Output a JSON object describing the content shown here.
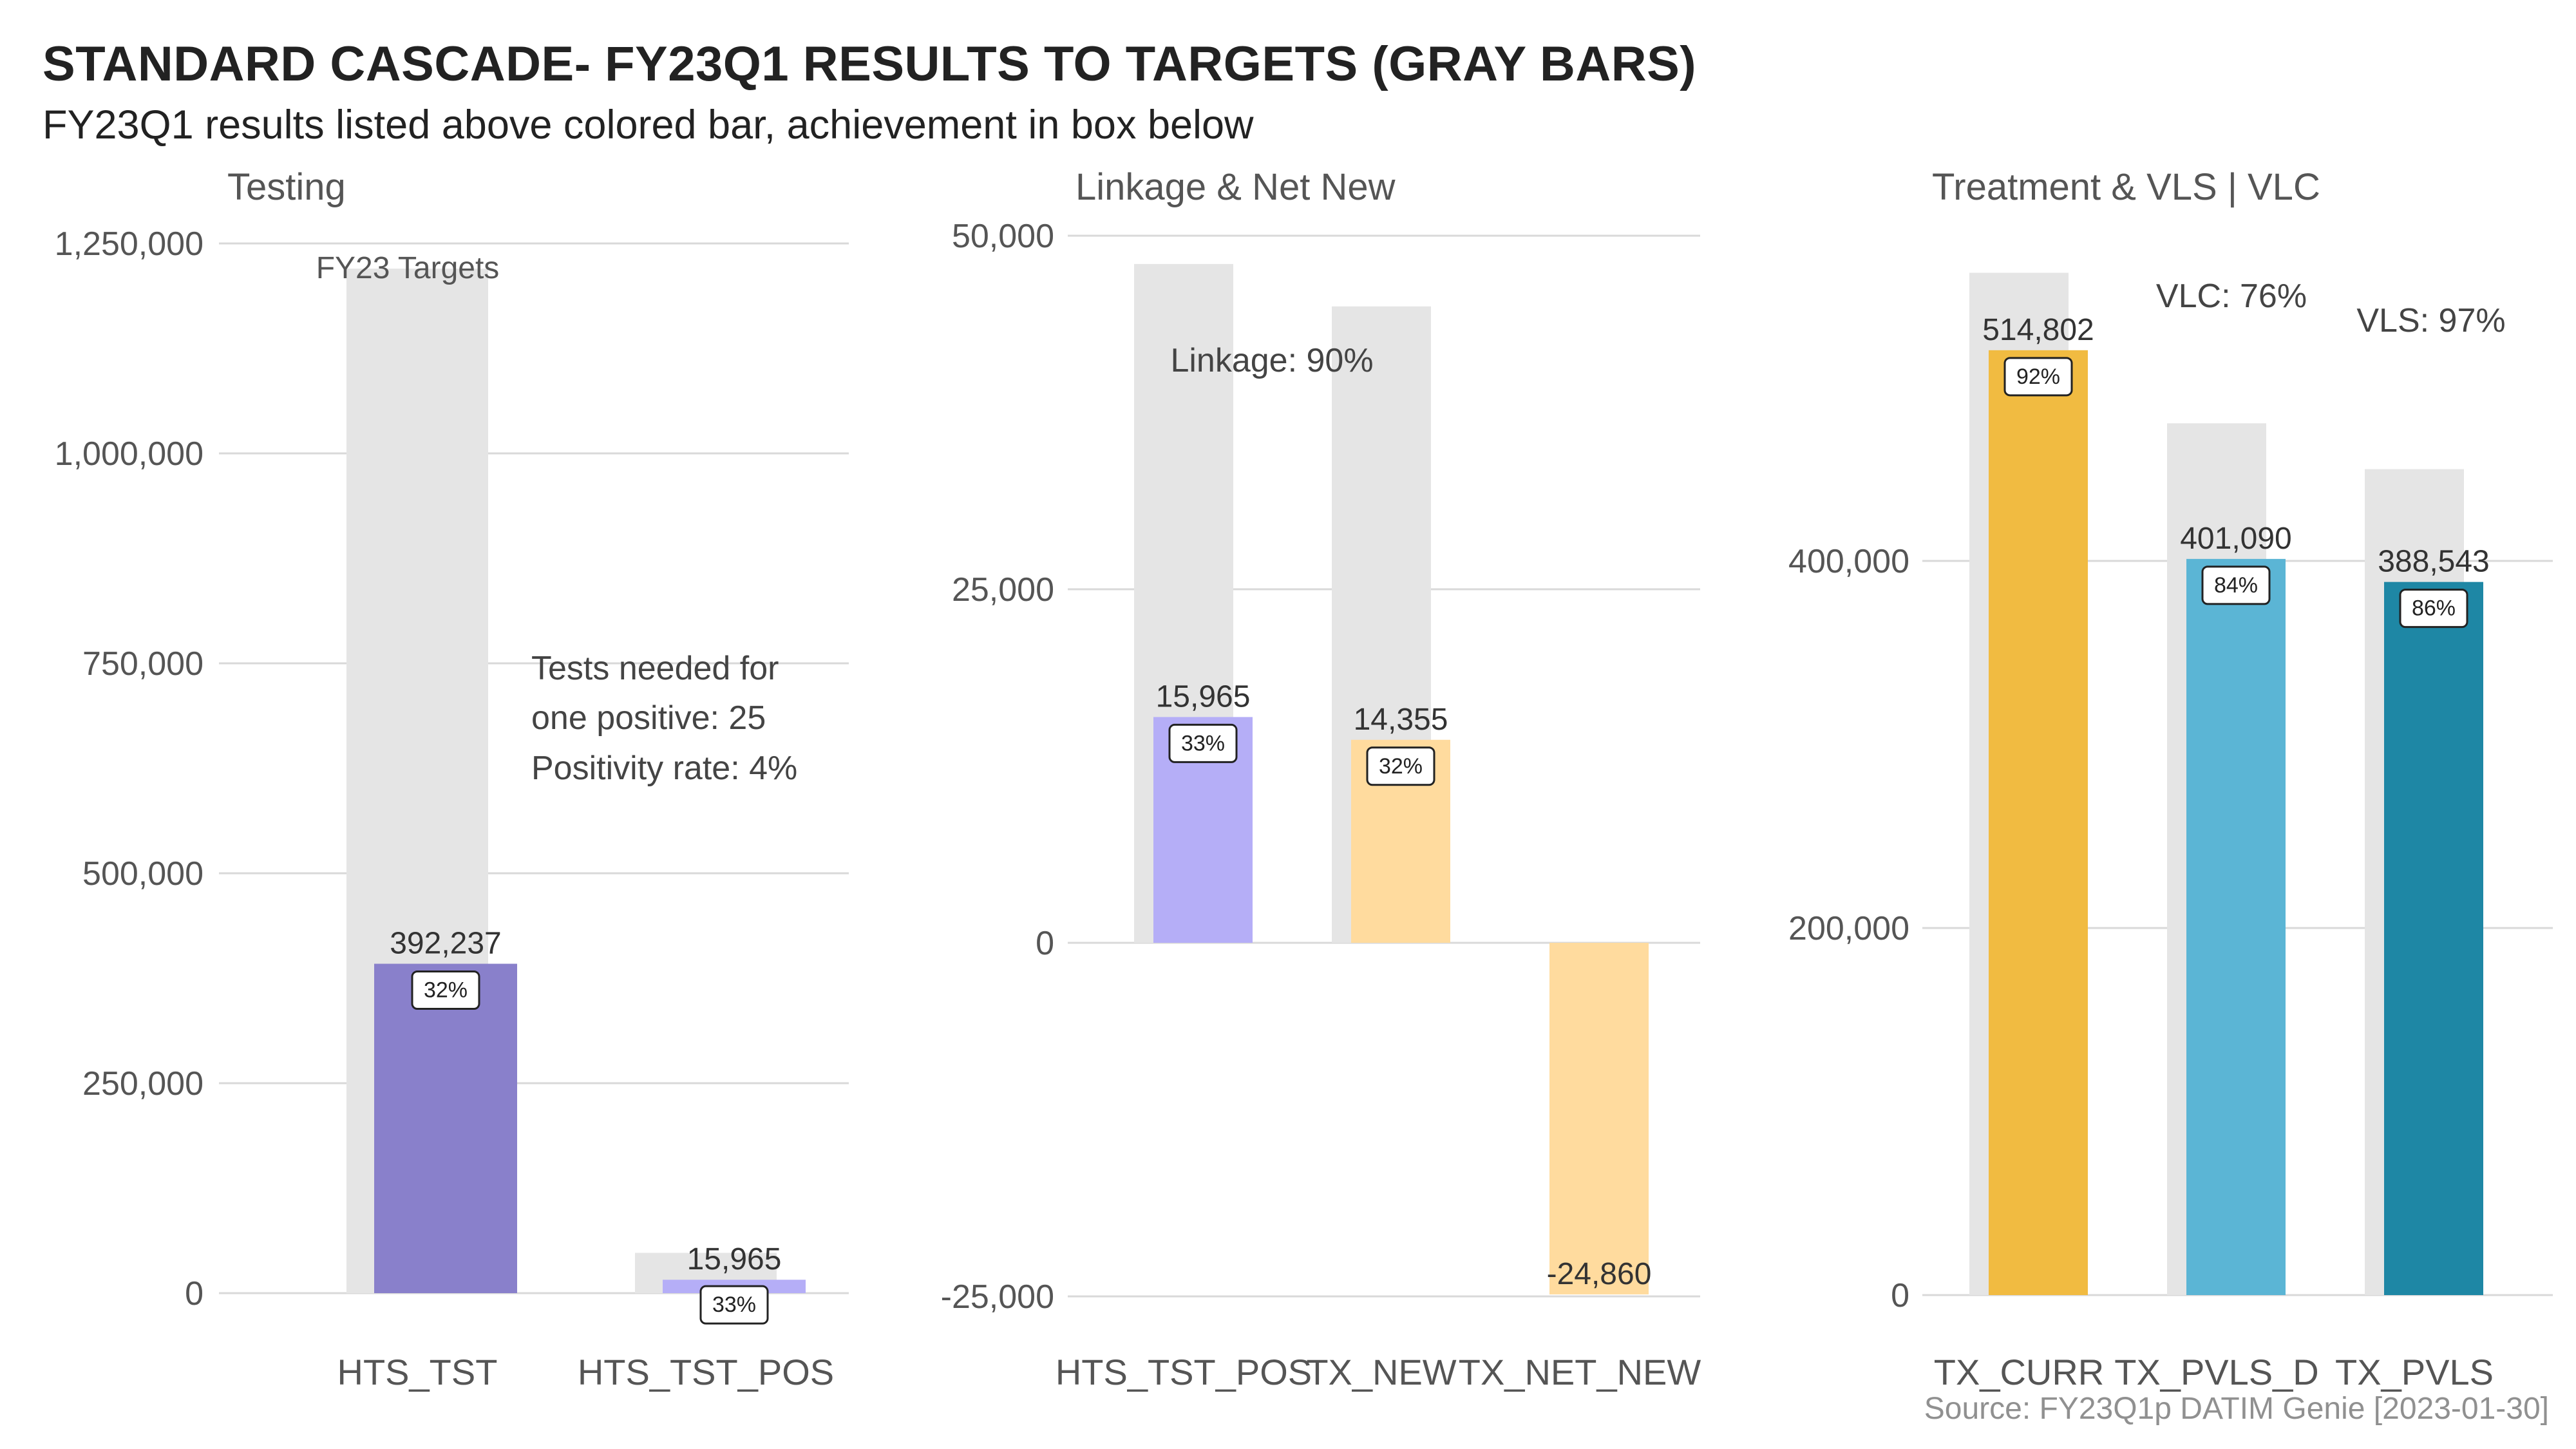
{
  "title": "STANDARD CASCADE- FY23Q1 RESULTS TO TARGETS (GRAY BARS)",
  "subtitle": "FY23Q1 results listed above colored bar, achievement in box below",
  "caption": "Source: FY23Q1p DATIM Genie [2023-01-30]",
  "colors": {
    "target": "#e5e5e5",
    "grid": "#d9d9d9",
    "hts_tst": "#8980cb",
    "purple_light": "#b5aef7",
    "peach": "#ffdb9e",
    "gold": "#f1bb41",
    "blue_light": "#5bb5d5",
    "blue_dark": "#1e87a5",
    "text": "#505050"
  },
  "chart_data": [
    {
      "type": "bar",
      "title": "Testing",
      "categories": [
        "HTS_TST",
        "HTS_TST_POS"
      ],
      "ylim": [
        0,
        1250000
      ],
      "yticks": [
        0,
        250000,
        500000,
        750000,
        1000000,
        1250000
      ],
      "ytick_labels": [
        "0",
        "250,000",
        "500,000",
        "750,000",
        "1,000,000",
        "1,250,000"
      ],
      "targets": [
        1220000,
        48000
      ],
      "values": [
        392237,
        15965
      ],
      "value_labels": [
        "392,237",
        "15,965"
      ],
      "achievement": [
        "32%",
        "33%"
      ],
      "bar_colors": [
        "#8980cb",
        "#b5aef7"
      ],
      "annotations": [
        "FY23 Targets",
        "Tests needed for",
        "one positive: 25",
        "Positivity rate: 4%"
      ],
      "grid": true
    },
    {
      "type": "bar",
      "title": "Linkage & Net New",
      "categories": [
        "HTS_TST_POS",
        "TX_NEW",
        "TX_NET_NEW"
      ],
      "ylim": [
        -25000,
        50000
      ],
      "yticks": [
        -25000,
        0,
        25000,
        50000
      ],
      "ytick_labels": [
        "-25,000",
        "0",
        "25,000",
        "50,000"
      ],
      "targets": [
        48000,
        45000,
        0
      ],
      "values": [
        15965,
        14355,
        -24860
      ],
      "value_labels": [
        "15,965",
        "14,355",
        "-24,860"
      ],
      "achievement": [
        "33%",
        "32%",
        ""
      ],
      "bar_colors": [
        "#b5aef7",
        "#ffdb9e",
        "#ffdb9e"
      ],
      "annotations": [
        "Linkage: 90%"
      ],
      "grid": true
    },
    {
      "type": "bar",
      "title": "Treatment & VLS | VLC",
      "categories": [
        "TX_CURR",
        "TX_PVLS_D",
        "TX_PVLS"
      ],
      "ylim": [
        0,
        560000
      ],
      "yticks": [
        0,
        200000,
        400000
      ],
      "ytick_labels": [
        "0",
        "200,000",
        "400,000"
      ],
      "targets": [
        557000,
        475000,
        450000
      ],
      "values": [
        514802,
        401090,
        388543
      ],
      "value_labels": [
        "514,802",
        "401,090",
        "388,543"
      ],
      "achievement": [
        "92%",
        "84%",
        "86%"
      ],
      "bar_colors": [
        "#f1bb41",
        "#5bb5d5",
        "#1e87a5"
      ],
      "annotations": [
        "VLC: 76%",
        "VLS: 97%"
      ],
      "grid": true
    }
  ]
}
